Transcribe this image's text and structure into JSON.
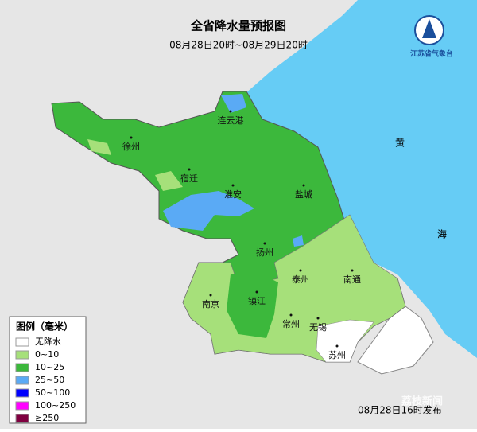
{
  "header": {
    "title": "全省降水量预报图",
    "subtitle": "08月28日20时~08月29日20时",
    "logo": "江苏省气象台"
  },
  "cities": [
    "连云港",
    "徐州",
    "宿迁",
    "淮安",
    "盐城",
    "扬州",
    "泰州",
    "南通",
    "南京",
    "镇江",
    "常州",
    "无锡",
    "苏州"
  ],
  "sea": [
    "黄",
    "海"
  ],
  "legend": {
    "title": "图例（毫米）",
    "items": [
      {
        "label": "无降水",
        "color": "#ffffff"
      },
      {
        "label": "0~10",
        "color": "#a6e07a"
      },
      {
        "label": "10~25",
        "color": "#3cb83c"
      },
      {
        "label": "25~50",
        "color": "#5aaaf5"
      },
      {
        "label": "50~100",
        "color": "#0000ff"
      },
      {
        "label": "100~250",
        "color": "#ff00ff"
      },
      {
        "label": "≥250",
        "color": "#800040"
      }
    ]
  },
  "footer": "08月28日16时发布",
  "watermark": "荔枝新闻"
}
